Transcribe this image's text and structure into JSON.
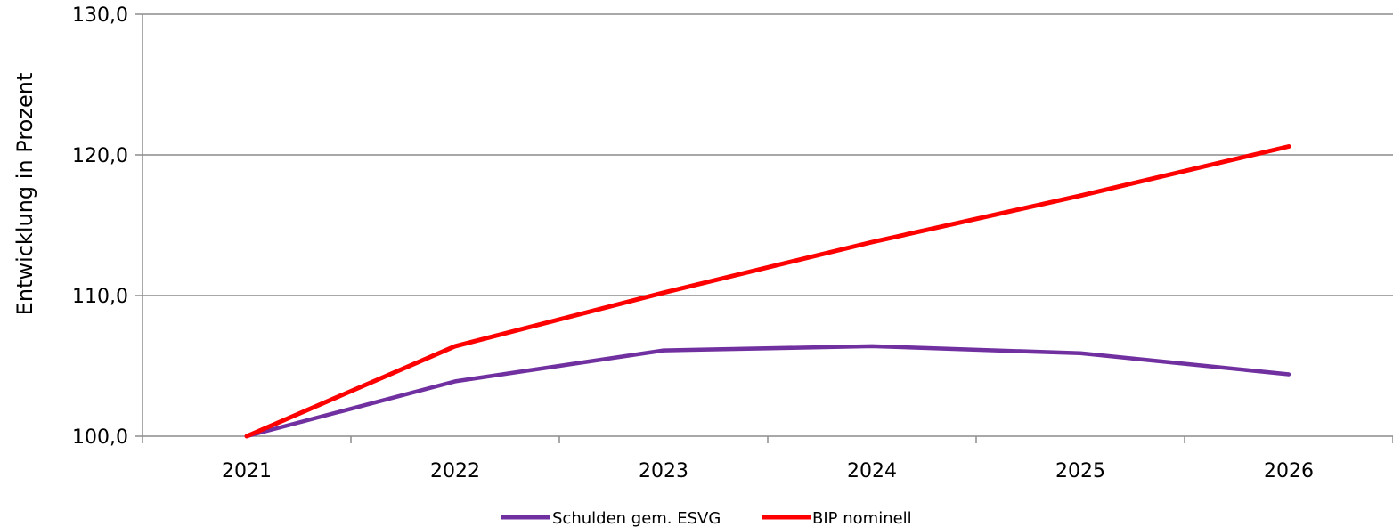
{
  "chart_data": {
    "type": "line",
    "title": "",
    "xlabel": "",
    "ylabel": "Entwicklung in Prozent",
    "categories": [
      "2021",
      "2022",
      "2023",
      "2024",
      "2025",
      "2026"
    ],
    "ylim": [
      100,
      130
    ],
    "yticks": [
      100,
      110,
      120,
      130
    ],
    "ytick_labels": [
      "100,0",
      "110,0",
      "120,0",
      "130,0"
    ],
    "grid": "horizontal",
    "legend_position": "bottom-center",
    "series": [
      {
        "name": "Schulden gem. ESVG",
        "color": "#7030A0",
        "values": [
          100.0,
          103.9,
          106.1,
          106.4,
          105.9,
          104.4
        ]
      },
      {
        "name": "BIP nominell",
        "color": "#FF0000",
        "values": [
          100.0,
          106.4,
          110.2,
          113.8,
          117.1,
          120.6
        ]
      }
    ]
  }
}
